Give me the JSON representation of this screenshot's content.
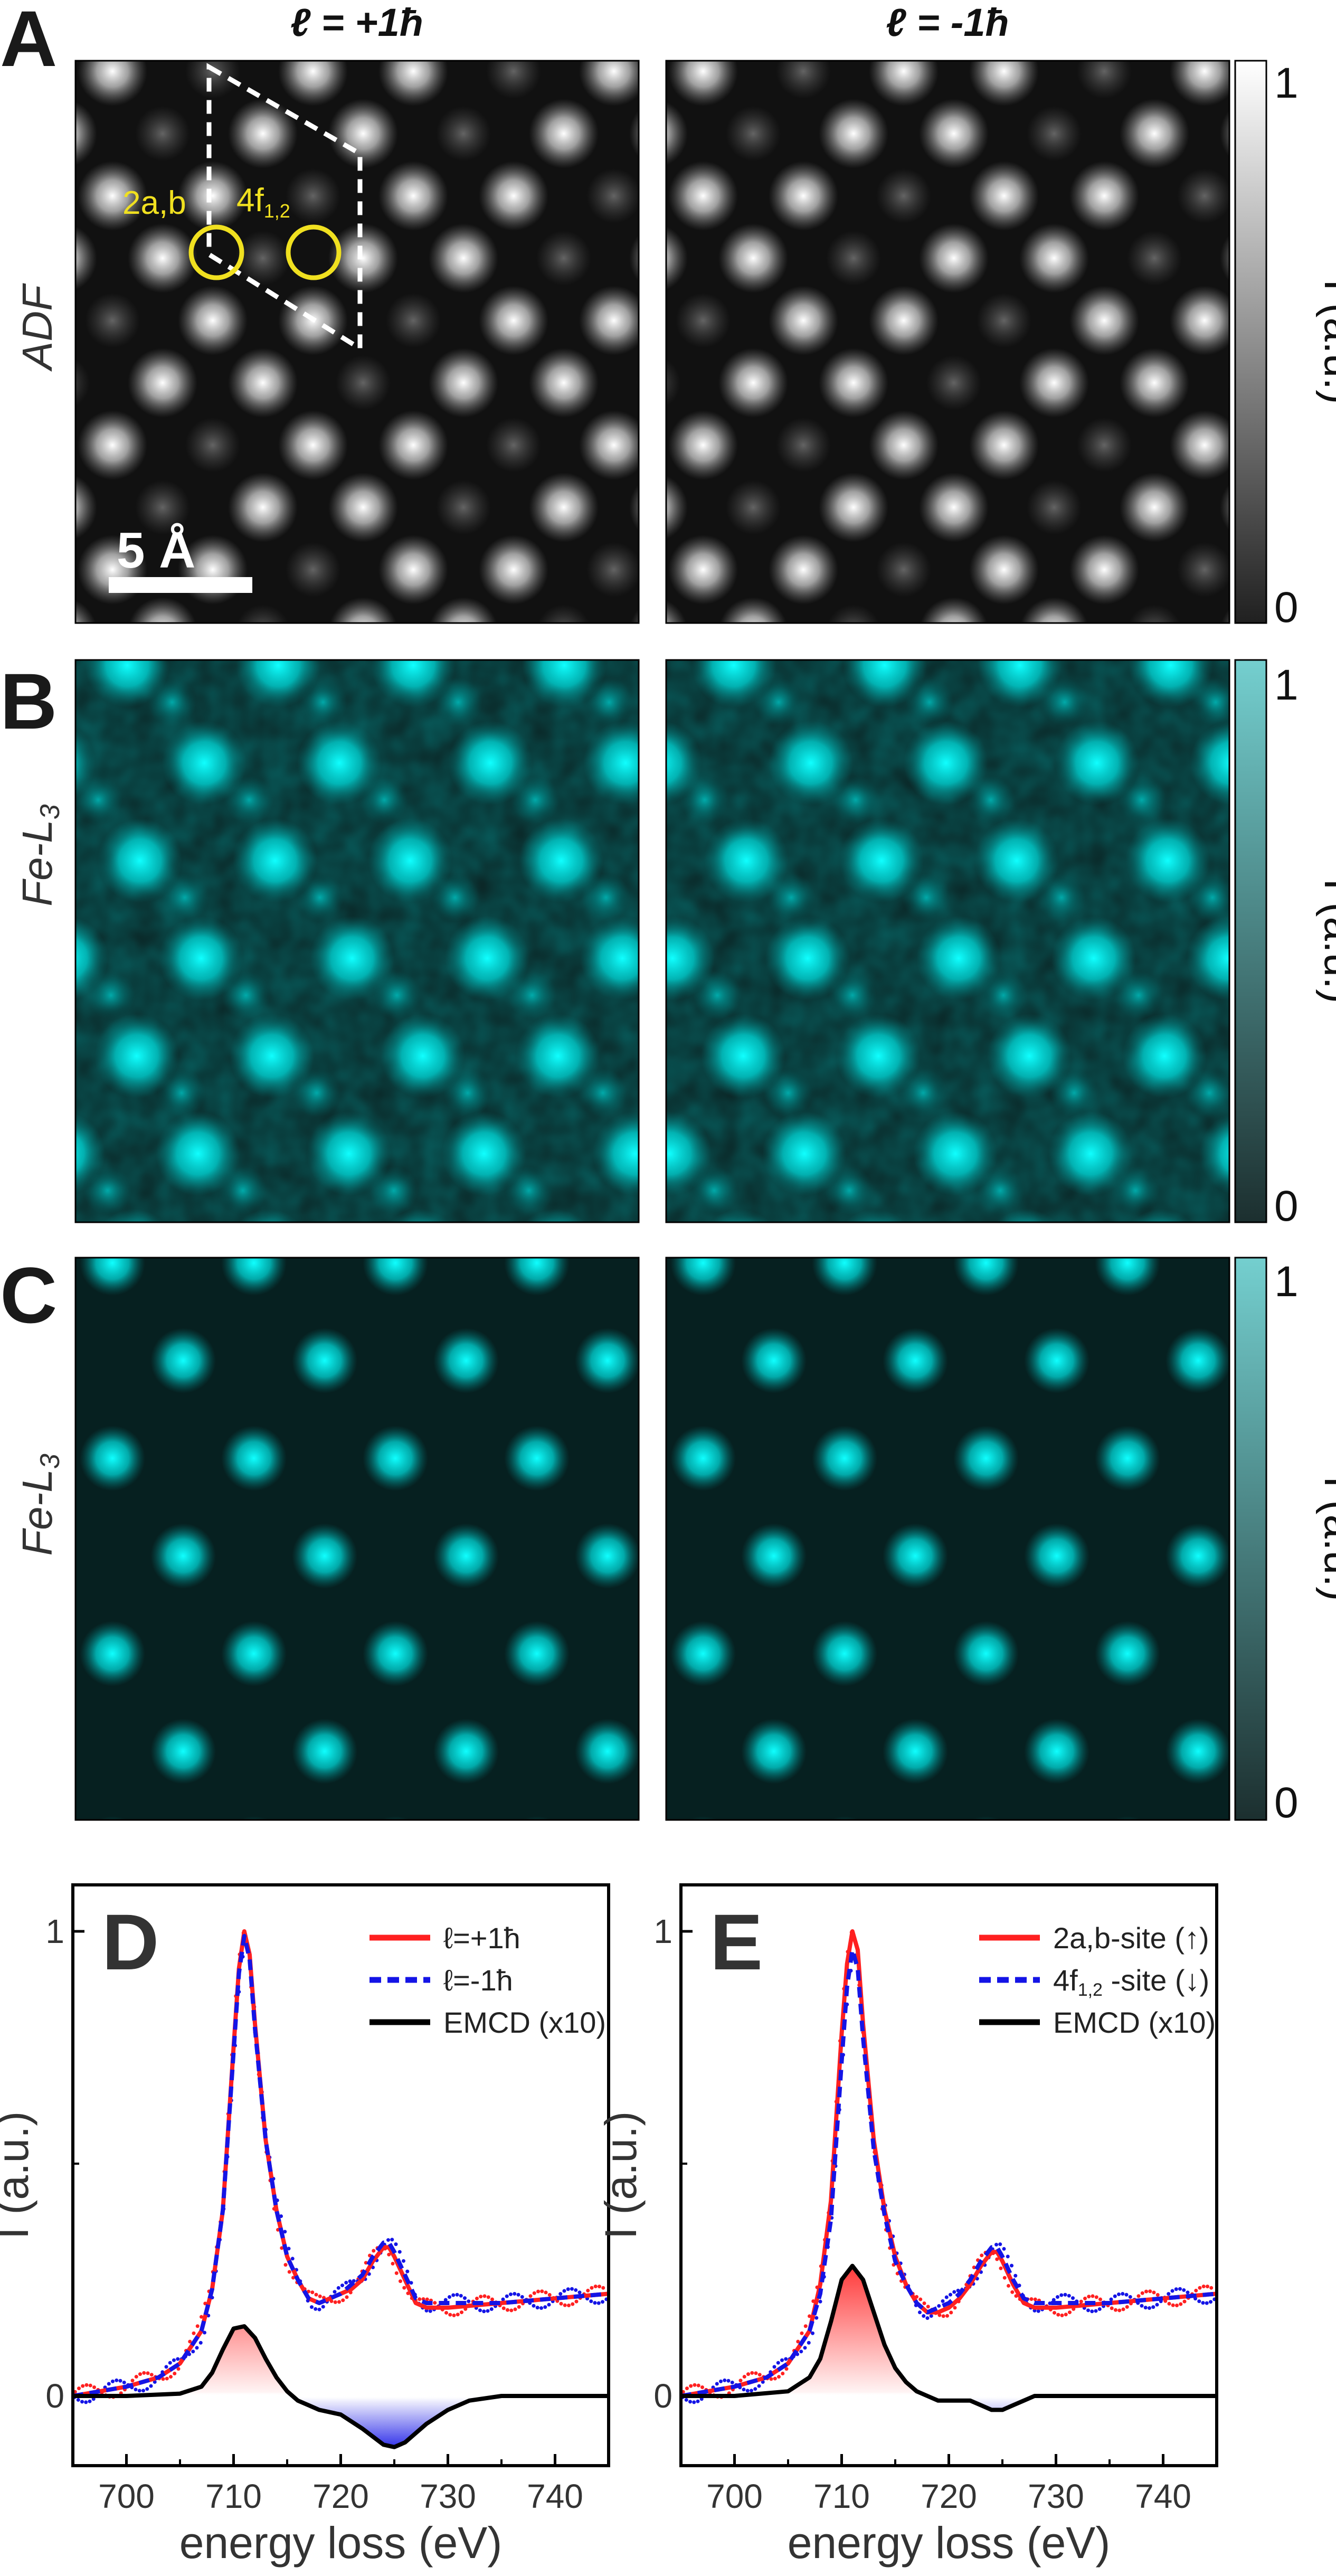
{
  "column_headers": {
    "left": "ℓ = +1ħ",
    "right": "ℓ = -1ħ"
  },
  "panel_letters": {
    "A": "A",
    "B": "B",
    "C": "C",
    "D": "D",
    "E": "E"
  },
  "row_labels": {
    "adf": "ADF",
    "fe_base": "Fe-L",
    "fe_sub": "3"
  },
  "annotations": {
    "site_2ab": "2a,b",
    "site_4f": "4f",
    "site_4f_sub": "1,2",
    "scale_bar": "5 Å"
  },
  "colorbar": {
    "label": "I (a.u.)",
    "max": "1",
    "min": "0"
  },
  "colors": {
    "cyan": "#00f0f0",
    "gray_bar_top": "#ffffff",
    "gray_bar_bottom": "#202020",
    "cyan_bar_top": "#74cfcf",
    "cyan_bar_bottom": "#1c2f2f",
    "annotation_yellow": "#f0e020",
    "red": "#ff2020",
    "blue": "#1414e6",
    "black": "#000000"
  },
  "chart_data": [
    {
      "type": "line",
      "panel": "D",
      "xlabel": "energy loss (eV)",
      "ylabel": "I (a.u.)",
      "xlim": [
        695,
        745
      ],
      "ylim": [
        -0.15,
        1.1
      ],
      "xticks": [
        700,
        710,
        720,
        730,
        740
      ],
      "yticks": [
        {
          "value": 0,
          "label": "0"
        },
        {
          "value": 1,
          "label": "1"
        }
      ],
      "legend": "top-right",
      "series": [
        {
          "name": "ℓ=+1ħ",
          "style": "solid",
          "color": "red",
          "x": [
            695,
            700,
            703,
            705,
            707,
            708,
            709,
            710,
            710.5,
            711,
            711.5,
            712,
            713,
            714,
            715,
            716,
            717,
            718,
            719,
            720,
            721,
            722,
            723,
            724,
            724.5,
            725,
            726,
            727,
            728,
            730,
            735,
            740,
            745
          ],
          "y": [
            0.0,
            0.02,
            0.04,
            0.07,
            0.14,
            0.23,
            0.4,
            0.75,
            0.92,
            1.0,
            0.95,
            0.8,
            0.55,
            0.4,
            0.3,
            0.25,
            0.21,
            0.2,
            0.21,
            0.22,
            0.23,
            0.25,
            0.29,
            0.32,
            0.32,
            0.3,
            0.25,
            0.2,
            0.19,
            0.19,
            0.2,
            0.21,
            0.22
          ]
        },
        {
          "name": "ℓ=-1ħ",
          "style": "dashed",
          "color": "blue",
          "x": [
            695,
            700,
            703,
            705,
            707,
            708,
            709,
            710,
            710.5,
            711,
            711.5,
            712,
            713,
            714,
            715,
            716,
            717,
            718,
            719,
            720,
            721,
            722,
            723,
            724,
            724.5,
            725,
            726,
            727,
            728,
            730,
            735,
            740,
            745
          ],
          "y": [
            0.0,
            0.02,
            0.04,
            0.07,
            0.14,
            0.23,
            0.4,
            0.74,
            0.91,
            0.99,
            0.94,
            0.79,
            0.55,
            0.4,
            0.3,
            0.25,
            0.21,
            0.2,
            0.21,
            0.22,
            0.24,
            0.26,
            0.3,
            0.33,
            0.33,
            0.31,
            0.26,
            0.21,
            0.2,
            0.2,
            0.2,
            0.21,
            0.22
          ]
        },
        {
          "name": "EMCD (x10)",
          "style": "solid",
          "color": "black",
          "x": [
            695,
            700,
            705,
            707,
            708,
            709,
            710,
            711,
            712,
            713,
            714,
            715,
            716,
            717,
            718,
            720,
            722,
            724,
            725,
            726,
            727,
            728,
            730,
            732,
            735,
            740,
            745
          ],
          "y": [
            0.0,
            0.0,
            0.005,
            0.02,
            0.05,
            0.1,
            0.145,
            0.15,
            0.125,
            0.08,
            0.04,
            0.01,
            -0.01,
            -0.02,
            -0.03,
            -0.04,
            -0.07,
            -0.105,
            -0.11,
            -0.1,
            -0.08,
            -0.06,
            -0.03,
            -0.01,
            0.0,
            0.0,
            0.0
          ]
        }
      ]
    },
    {
      "type": "line",
      "panel": "E",
      "xlabel": "energy loss (eV)",
      "ylabel": "I (a.u.)",
      "xlim": [
        695,
        745
      ],
      "ylim": [
        -0.15,
        1.1
      ],
      "xticks": [
        700,
        710,
        720,
        730,
        740
      ],
      "yticks": [
        {
          "value": 0,
          "label": "0"
        },
        {
          "value": 1,
          "label": "1"
        }
      ],
      "legend": "top-right",
      "series": [
        {
          "name": "2a,b-site (↑)",
          "style": "solid",
          "color": "red",
          "x": [
            695,
            700,
            703,
            705,
            707,
            708,
            709,
            710,
            710.5,
            711,
            711.5,
            712,
            713,
            714,
            715,
            716,
            717,
            718,
            719,
            720,
            721,
            722,
            723,
            724,
            724.5,
            725,
            726,
            727,
            728,
            730,
            735,
            740,
            745
          ],
          "y": [
            0.0,
            0.02,
            0.04,
            0.07,
            0.14,
            0.24,
            0.42,
            0.78,
            0.93,
            1.0,
            0.96,
            0.8,
            0.55,
            0.4,
            0.3,
            0.24,
            0.2,
            0.18,
            0.18,
            0.19,
            0.21,
            0.24,
            0.28,
            0.31,
            0.31,
            0.29,
            0.24,
            0.2,
            0.19,
            0.19,
            0.2,
            0.21,
            0.22
          ]
        },
        {
          "name": "4f-site (↓)",
          "style": "dashed",
          "color": "blue",
          "x": [
            695,
            700,
            703,
            705,
            707,
            708,
            709,
            710,
            710.5,
            711,
            711.5,
            712,
            713,
            714,
            715,
            716,
            717,
            718,
            719,
            720,
            721,
            722,
            723,
            724,
            724.5,
            725,
            726,
            727,
            728,
            730,
            735,
            740,
            745
          ],
          "y": [
            0.0,
            0.02,
            0.04,
            0.07,
            0.14,
            0.22,
            0.38,
            0.72,
            0.88,
            0.96,
            0.92,
            0.77,
            0.53,
            0.39,
            0.29,
            0.24,
            0.2,
            0.18,
            0.19,
            0.2,
            0.22,
            0.25,
            0.29,
            0.32,
            0.32,
            0.3,
            0.25,
            0.21,
            0.2,
            0.2,
            0.2,
            0.21,
            0.22
          ]
        },
        {
          "name": "EMCD (x10)",
          "style": "solid",
          "color": "black",
          "x": [
            695,
            700,
            705,
            707,
            708,
            709,
            710,
            711,
            712,
            713,
            714,
            715,
            716,
            717,
            718,
            719,
            720,
            721,
            722,
            723,
            724,
            725,
            726,
            727,
            728,
            730,
            735,
            740,
            745
          ],
          "y": [
            0.0,
            0.0,
            0.01,
            0.04,
            0.08,
            0.16,
            0.25,
            0.28,
            0.25,
            0.18,
            0.11,
            0.06,
            0.03,
            0.01,
            0.0,
            -0.01,
            -0.01,
            -0.01,
            -0.01,
            -0.02,
            -0.03,
            -0.03,
            -0.02,
            -0.01,
            0.0,
            0.0,
            0.0,
            0.0,
            0.0
          ]
        }
      ]
    }
  ]
}
